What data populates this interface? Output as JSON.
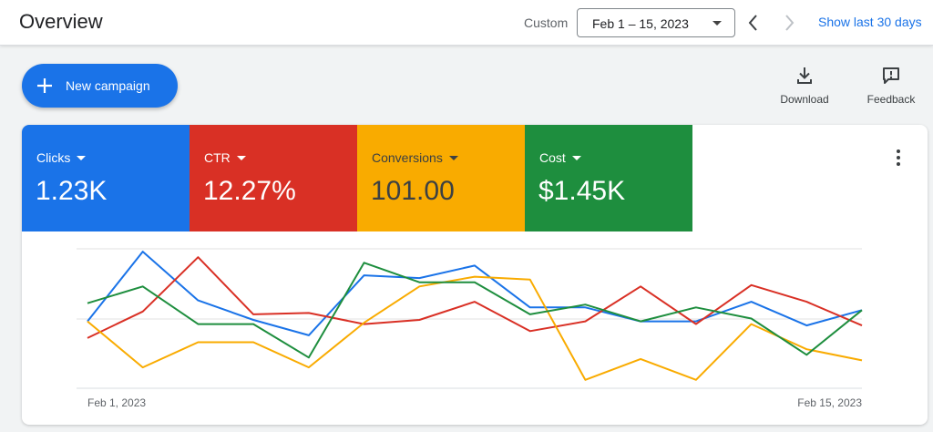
{
  "header": {
    "title": "Overview",
    "range_type": "Custom",
    "date_range": "Feb 1 – 15, 2023",
    "show_last": "Show last 30 days"
  },
  "actions": {
    "new_campaign": "New campaign",
    "download": "Download",
    "feedback": "Feedback"
  },
  "scorecards": [
    {
      "label": "Clicks",
      "value": "1.23K",
      "color": "#1a73e8"
    },
    {
      "label": "CTR",
      "value": "12.27%",
      "color": "#d93025"
    },
    {
      "label": "Conversions",
      "value": "101.00",
      "color": "#f9ab00"
    },
    {
      "label": "Cost",
      "value": "$1.45K",
      "color": "#1e8e3e"
    }
  ],
  "icons": {
    "prev": "chevron-left-icon",
    "next": "chevron-right-icon",
    "add": "plus-icon",
    "download": "download-icon",
    "feedback": "feedback-icon",
    "more": "more-vert-icon",
    "dropdown": "caret-down-icon"
  },
  "chart_data": {
    "type": "line",
    "x_tick_labels": [
      "Feb 1, 2023",
      "Feb 15, 2023"
    ],
    "x_points": 15,
    "ylim": [
      0,
      100
    ],
    "grid": true,
    "series": [
      {
        "name": "Clicks",
        "color": "#1a73e8",
        "values": [
          48,
          98,
          63,
          49,
          38,
          81,
          79,
          88,
          58,
          58,
          48,
          48,
          62,
          45,
          56
        ]
      },
      {
        "name": "CTR",
        "color": "#d93025",
        "values": [
          36,
          55,
          94,
          53,
          54,
          46,
          49,
          62,
          41,
          48,
          73,
          46,
          74,
          62,
          45
        ]
      },
      {
        "name": "Conversions",
        "color": "#f9ab00",
        "values": [
          48,
          15,
          33,
          33,
          15,
          47,
          73,
          80,
          78,
          6,
          21,
          6,
          46,
          28,
          20
        ]
      },
      {
        "name": "Cost",
        "color": "#1e8e3e",
        "values": [
          61,
          73,
          46,
          46,
          22,
          90,
          76,
          76,
          53,
          60,
          48,
          58,
          50,
          24,
          56
        ]
      }
    ]
  }
}
